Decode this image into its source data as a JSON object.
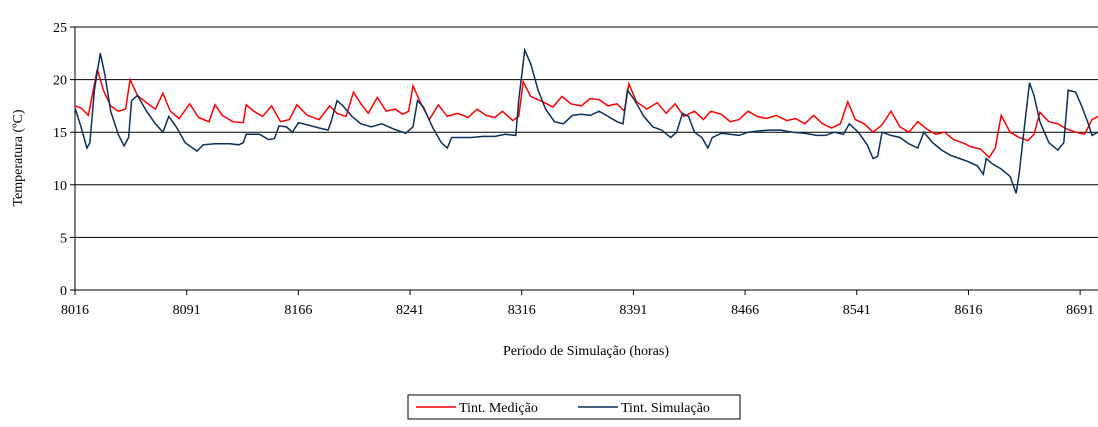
{
  "chart_data": {
    "type": "line",
    "ylabel": "Temperatura (ºC)",
    "xlabel": "Período de Simulação (horas)",
    "xlim": [
      8016,
      8703
    ],
    "xticks": [
      8016,
      8091,
      8166,
      8241,
      8316,
      8391,
      8466,
      8541,
      8616,
      8691
    ],
    "ylim": [
      0,
      25
    ],
    "yticks": [
      0,
      5,
      10,
      15,
      20,
      25
    ],
    "grid": true,
    "legend": "bottom",
    "series": [
      {
        "name": "Tint. Medição",
        "color": "#ff0000",
        "x": [
          8016,
          8020,
          8025,
          8031,
          8035,
          8040,
          8045,
          8050,
          8053,
          8058,
          8064,
          8070,
          8075,
          8080,
          8086,
          8093,
          8099,
          8106,
          8110,
          8115,
          8122,
          8129,
          8131,
          8136,
          8142,
          8148,
          8154,
          8160,
          8165,
          8172,
          8180,
          8187,
          8192,
          8198,
          8203,
          8208,
          8213,
          8219,
          8225,
          8231,
          8236,
          8240,
          8243,
          8248,
          8254,
          8260,
          8266,
          8273,
          8280,
          8286,
          8292,
          8298,
          8303,
          8310,
          8314,
          8317,
          8322,
          8330,
          8337,
          8343,
          8349,
          8356,
          8362,
          8368,
          8374,
          8380,
          8385,
          8388,
          8393,
          8400,
          8407,
          8413,
          8419,
          8425,
          8432,
          8438,
          8443,
          8450,
          8456,
          8462,
          8468,
          8474,
          8480,
          8487,
          8494,
          8500,
          8506,
          8512,
          8518,
          8524,
          8530,
          8535,
          8540,
          8546,
          8552,
          8558,
          8564,
          8570,
          8576,
          8582,
          8588,
          8594,
          8600,
          8606,
          8612,
          8618,
          8624,
          8630,
          8634,
          8638,
          8644,
          8650,
          8656,
          8660,
          8664,
          8670,
          8676,
          8682,
          8688,
          8694,
          8699,
          8703
        ],
        "values": [
          17.5,
          17.3,
          16.6,
          21.0,
          19.0,
          17.5,
          17.0,
          17.2,
          20.0,
          18.5,
          17.8,
          17.2,
          18.7,
          17.0,
          16.3,
          17.7,
          16.4,
          16.0,
          17.6,
          16.6,
          16.0,
          15.9,
          17.6,
          17.0,
          16.5,
          17.5,
          16.0,
          16.2,
          17.6,
          16.6,
          16.2,
          17.5,
          16.8,
          16.5,
          18.8,
          17.7,
          16.8,
          18.3,
          17.0,
          17.2,
          16.7,
          17.0,
          19.4,
          17.8,
          16.2,
          17.6,
          16.5,
          16.8,
          16.4,
          17.2,
          16.6,
          16.4,
          17.0,
          16.1,
          16.5,
          19.8,
          18.4,
          17.9,
          17.4,
          18.4,
          17.7,
          17.5,
          18.2,
          18.1,
          17.5,
          17.7,
          17.0,
          19.6,
          17.9,
          17.2,
          17.8,
          16.8,
          17.7,
          16.5,
          17.0,
          16.2,
          17.0,
          16.7,
          16.0,
          16.2,
          17.0,
          16.5,
          16.3,
          16.6,
          16.1,
          16.3,
          15.8,
          16.6,
          15.8,
          15.4,
          15.8,
          17.9,
          16.2,
          15.8,
          15.0,
          15.7,
          17.0,
          15.5,
          15.0,
          16.0,
          15.3,
          14.8,
          15.0,
          14.3,
          14.0,
          13.6,
          13.4,
          12.6,
          13.5,
          16.6,
          15.0,
          14.5,
          14.2,
          14.8,
          16.9,
          16.0,
          15.8,
          15.3,
          15.0,
          14.8,
          16.2,
          16.5
        ]
      },
      {
        "name": "Tint. Simulação",
        "color": "#0b2f5a",
        "x": [
          8016,
          8020,
          8024,
          8026,
          8029,
          8033,
          8036,
          8040,
          8045,
          8049,
          8052,
          8054,
          8058,
          8064,
          8070,
          8075,
          8079,
          8084,
          8090,
          8098,
          8102,
          8110,
          8120,
          8126,
          8129,
          8131,
          8140,
          8146,
          8150,
          8153,
          8158,
          8162,
          8166,
          8172,
          8180,
          8186,
          8188,
          8192,
          8196,
          8202,
          8208,
          8215,
          8222,
          8230,
          8238,
          8243,
          8246,
          8250,
          8256,
          8262,
          8266,
          8269,
          8275,
          8282,
          8290,
          8298,
          8305,
          8312,
          8314,
          8318,
          8322,
          8327,
          8332,
          8338,
          8344,
          8350,
          8356,
          8362,
          8368,
          8374,
          8380,
          8384,
          8387,
          8392,
          8398,
          8404,
          8410,
          8416,
          8420,
          8424,
          8428,
          8432,
          8437,
          8441,
          8444,
          8450,
          8456,
          8462,
          8468,
          8474,
          8482,
          8490,
          8498,
          8506,
          8514,
          8520,
          8526,
          8532,
          8536,
          8542,
          8548,
          8552,
          8555,
          8558,
          8564,
          8570,
          8576,
          8582,
          8586,
          8592,
          8598,
          8604,
          8610,
          8616,
          8622,
          8626,
          8628,
          8632,
          8638,
          8644,
          8648,
          8650,
          8654,
          8657,
          8660,
          8664,
          8670,
          8676,
          8680,
          8683,
          8688,
          8692,
          8696,
          8699,
          8703
        ],
        "values": [
          17.3,
          15.5,
          13.5,
          14.0,
          19.0,
          22.5,
          20.5,
          17.0,
          14.8,
          13.7,
          14.5,
          18.0,
          18.5,
          17.0,
          15.8,
          15.0,
          16.5,
          15.5,
          14.0,
          13.2,
          13.8,
          13.9,
          13.9,
          13.8,
          14.0,
          14.8,
          14.8,
          14.3,
          14.4,
          15.6,
          15.5,
          15.0,
          15.9,
          15.7,
          15.4,
          15.2,
          16.0,
          18.0,
          17.5,
          16.5,
          15.8,
          15.5,
          15.8,
          15.3,
          14.9,
          15.5,
          18.0,
          17.4,
          15.5,
          14.0,
          13.5,
          14.5,
          14.5,
          14.5,
          14.6,
          14.6,
          14.8,
          14.7,
          18.0,
          22.8,
          21.5,
          19.0,
          17.2,
          16.0,
          15.8,
          16.6,
          16.7,
          16.6,
          17.0,
          16.5,
          16.0,
          15.8,
          19.0,
          18.0,
          16.5,
          15.5,
          15.2,
          14.5,
          15.0,
          16.8,
          16.5,
          15.0,
          14.5,
          13.5,
          14.5,
          14.9,
          14.8,
          14.7,
          15.0,
          15.1,
          15.2,
          15.2,
          15.0,
          14.9,
          14.7,
          14.7,
          15.0,
          14.8,
          15.8,
          15.0,
          13.8,
          12.5,
          12.7,
          15.0,
          14.7,
          14.5,
          13.9,
          13.5,
          15.0,
          14.0,
          13.3,
          12.8,
          12.5,
          12.2,
          11.8,
          11.0,
          12.5,
          12.0,
          11.5,
          10.8,
          9.2,
          11.0,
          16.0,
          19.7,
          18.5,
          16.0,
          14.0,
          13.3,
          14.0,
          19.0,
          18.8,
          17.5,
          16.0,
          14.7,
          15.0
        ]
      }
    ]
  }
}
